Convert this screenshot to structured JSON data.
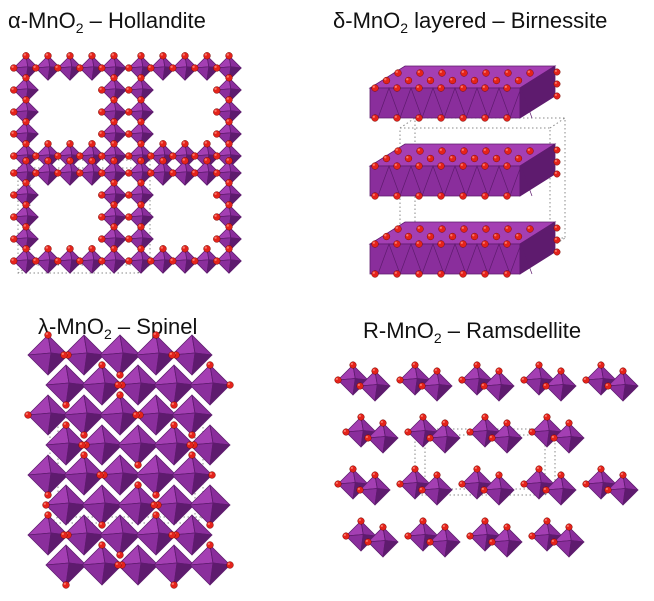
{
  "panels": [
    {
      "id": "alpha",
      "name_prefix": "α-MnO",
      "subscript": "2",
      "name_suffix": " – Hollandite",
      "structure": "tunnel-2x2",
      "unit_cell_box": "dotted"
    },
    {
      "id": "delta",
      "name_prefix": "δ-MnO",
      "subscript": "2",
      "name_suffix": " layered – Birnessite",
      "structure": "layered",
      "unit_cell_box": "dotted"
    },
    {
      "id": "lambda",
      "name_prefix": "λ-MnO",
      "subscript": "2",
      "name_suffix": " – Spinel",
      "structure": "spinel-3d",
      "unit_cell_box": "dotted"
    },
    {
      "id": "ramsdellite",
      "name_prefix": "R-MnO",
      "subscript": "2",
      "name_suffix": " – Ramsdellite",
      "structure": "tunnel-1x2",
      "unit_cell_box": "dotted"
    }
  ],
  "colors": {
    "octahedron_light": "#a43fb3",
    "octahedron_mid": "#8a2e9c",
    "octahedron_dark": "#5e1b6e",
    "oxygen": "#e4231b",
    "oxygen_highlight": "#ff8a7a",
    "cell_box": "#888888"
  }
}
